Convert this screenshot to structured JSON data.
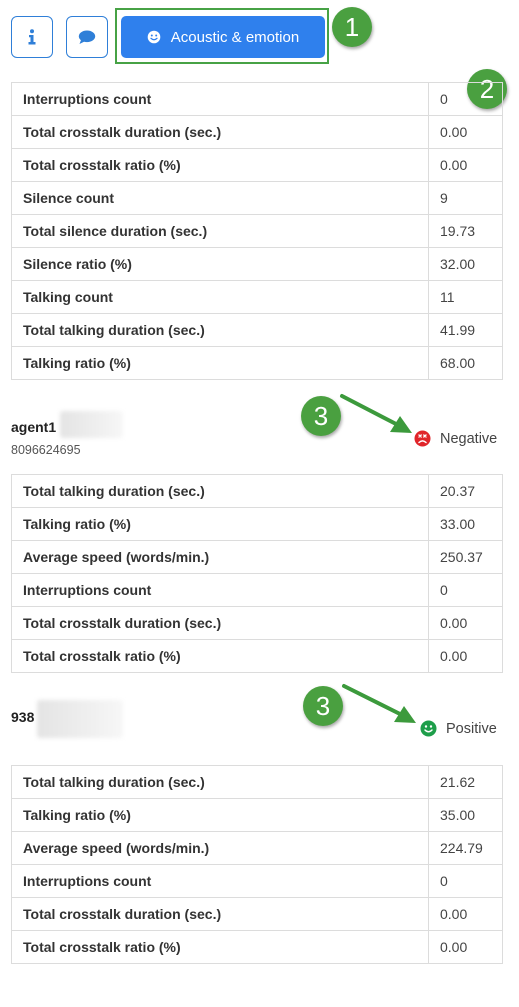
{
  "toolbar": {
    "info_icon": "info-icon",
    "chat_icon": "comment-icon",
    "acoustic_label": "Acoustic & emotion"
  },
  "callouts": {
    "one": "1",
    "two": "2",
    "three_a": "3",
    "three_b": "3"
  },
  "overall": {
    "rows": [
      {
        "label": "Interruptions count",
        "value": "0"
      },
      {
        "label": "Total crosstalk duration (sec.)",
        "value": "0.00"
      },
      {
        "label": "Total crosstalk ratio (%)",
        "value": "0.00"
      },
      {
        "label": "Silence count",
        "value": "9"
      },
      {
        "label": "Total silence duration (sec.)",
        "value": "19.73"
      },
      {
        "label": "Silence ratio (%)",
        "value": "32.00"
      },
      {
        "label": "Talking count",
        "value": "11"
      },
      {
        "label": "Total talking duration (sec.)",
        "value": "41.99"
      },
      {
        "label": "Talking ratio (%)",
        "value": "68.00"
      }
    ]
  },
  "agent": {
    "name": "agent1",
    "phone": "8096624695",
    "emotion": "Negative",
    "emotion_color": "#e0252a",
    "rows": [
      {
        "label": "Total talking duration (sec.)",
        "value": "20.37"
      },
      {
        "label": "Talking ratio (%)",
        "value": "33.00"
      },
      {
        "label": "Average speed (words/min.)",
        "value": "250.37"
      },
      {
        "label": "Interruptions count",
        "value": "0"
      },
      {
        "label": "Total crosstalk duration (sec.)",
        "value": "0.00"
      },
      {
        "label": "Total crosstalk ratio (%)",
        "value": "0.00"
      }
    ]
  },
  "customer": {
    "name": "938",
    "emotion": "Positive",
    "emotion_color": "#1e9e4a",
    "rows": [
      {
        "label": "Total talking duration (sec.)",
        "value": "21.62"
      },
      {
        "label": "Talking ratio (%)",
        "value": "35.00"
      },
      {
        "label": "Average speed (words/min.)",
        "value": "224.79"
      },
      {
        "label": "Interruptions count",
        "value": "0"
      },
      {
        "label": "Total crosstalk duration (sec.)",
        "value": "0.00"
      },
      {
        "label": "Total crosstalk ratio (%)",
        "value": "0.00"
      }
    ]
  },
  "colors": {
    "accent": "#2f80ed",
    "callout": "#4aa040"
  }
}
